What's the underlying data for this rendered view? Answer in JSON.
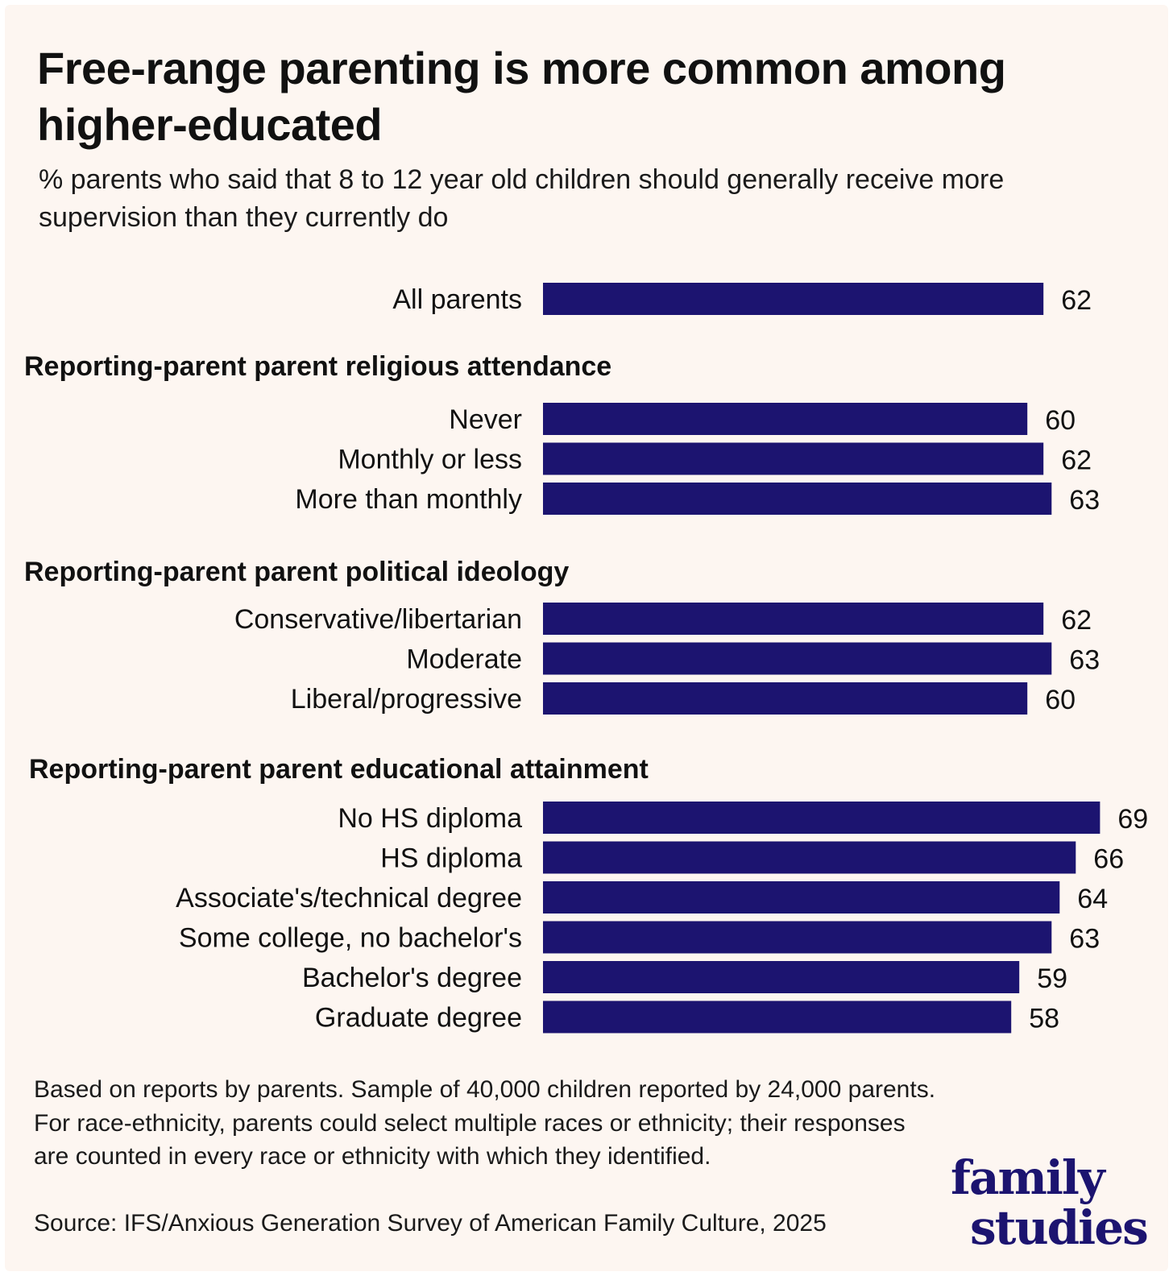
{
  "title": "Free-range parenting is more common among higher-educated",
  "subtitle": "% parents who said that 8 to 12 year old children should generally receive more supervision than they currently do",
  "colors": {
    "bar": "#1c1470",
    "background": "#fdf6f1",
    "text": "#111111"
  },
  "chart_data": {
    "type": "bar",
    "orientation": "horizontal",
    "xlim": [
      0,
      69
    ],
    "grid": false,
    "groups": [
      {
        "heading": "",
        "categories": [
          "All parents"
        ],
        "values": [
          62
        ]
      },
      {
        "heading": "Reporting-parent parent religious attendance",
        "categories": [
          "Never",
          "Monthly or less",
          "More than monthly"
        ],
        "values": [
          60,
          62,
          63
        ]
      },
      {
        "heading": "Reporting-parent parent political ideology",
        "categories": [
          "Conservative/libertarian",
          "Moderate",
          "Liberal/progressive"
        ],
        "values": [
          62,
          63,
          60
        ]
      },
      {
        "heading": "Reporting-parent parent educational attainment",
        "categories": [
          "No HS diploma",
          "HS diploma",
          "Associate's/technical degree",
          "Some college, no bachelor's",
          "Bachelor's degree",
          "Graduate degree"
        ],
        "values": [
          69,
          66,
          64,
          63,
          59,
          58
        ]
      }
    ]
  },
  "footnote": "Based on reports by parents. Sample of 40,000 children reported by 24,000 parents. For race-ethnicity, parents could select multiple races or ethnicity; their responses are counted in every race or ethnicity with which they identified.",
  "source": "Source: IFS/Anxious Generation Survey of American Family Culture, 2025",
  "logo": {
    "line1": "family",
    "line2": "studies"
  }
}
